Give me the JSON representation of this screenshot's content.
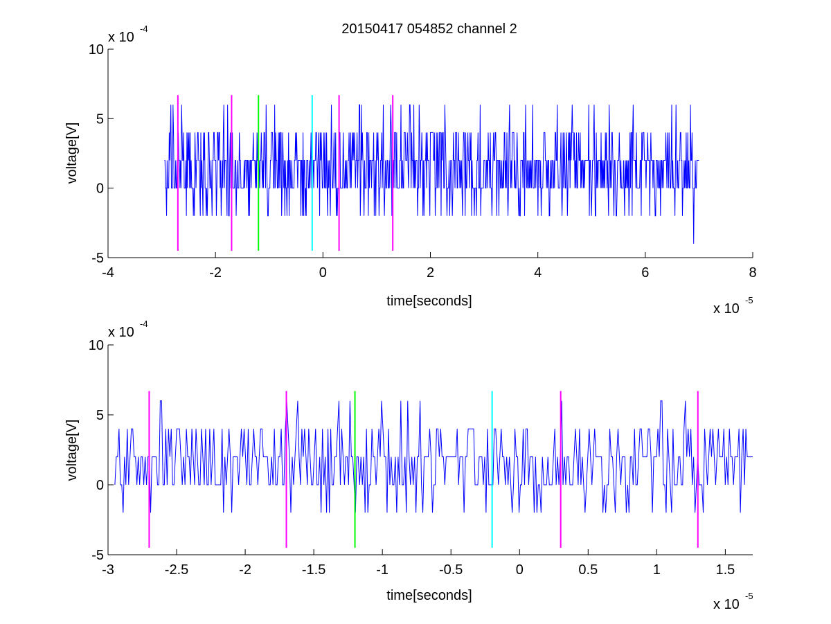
{
  "figure": {
    "title": "20150417 054852 channel 2"
  },
  "chart_data": [
    {
      "type": "line",
      "panel": "top",
      "xlabel": "time[seconds]",
      "ylabel": "voltage[V]",
      "xlim": [
        -4,
        8
      ],
      "ylim": [
        -5,
        10
      ],
      "x_ticks": [
        -4,
        -2,
        0,
        2,
        4,
        6,
        8
      ],
      "x_tick_labels": [
        "-4",
        "-2",
        "0",
        "2",
        "4",
        "6",
        "8"
      ],
      "y_ticks": [
        -5,
        0,
        5,
        10
      ],
      "y_tick_labels": [
        "-5",
        "0",
        "5",
        "10"
      ],
      "x_multiplier": {
        "base": "x 10",
        "exponent": "-5"
      },
      "y_multiplier": {
        "base": "x 10",
        "exponent": "-4"
      },
      "signal": {
        "color": "#0000ff",
        "x_start": -2.95,
        "x_end": 7.0,
        "samples": 1000,
        "levels": [
          -4,
          -2,
          0,
          2,
          4,
          6
        ],
        "baseline": 2,
        "min": -4,
        "max": 6,
        "note_points": [
          {
            "x": 4.95,
            "y": 6
          },
          {
            "x": 6.9,
            "y": -4
          }
        ]
      },
      "markers": [
        {
          "x": -2.7,
          "color": "#ff00ff",
          "y_range": [
            -4.5,
            6.7
          ]
        },
        {
          "x": -1.7,
          "color": "#ff00ff",
          "y_range": [
            -4.5,
            6.7
          ]
        },
        {
          "x": -1.2,
          "color": "#00ff00",
          "y_range": [
            -4.5,
            6.7
          ]
        },
        {
          "x": -0.2,
          "color": "#00ffff",
          "y_range": [
            -4.5,
            6.7
          ]
        },
        {
          "x": 0.3,
          "color": "#ff00ff",
          "y_range": [
            -4.5,
            6.7
          ]
        },
        {
          "x": 1.3,
          "color": "#ff00ff",
          "y_range": [
            -4.5,
            6.7
          ]
        }
      ]
    },
    {
      "type": "line",
      "panel": "bottom",
      "xlabel": "time[seconds]",
      "ylabel": "voltage[V]",
      "xlim": [
        -3.0,
        1.7
      ],
      "ylim": [
        -5,
        10
      ],
      "x_ticks": [
        -3,
        -2.5,
        -2,
        -1.5,
        -1,
        -0.5,
        0,
        0.5,
        1,
        1.5
      ],
      "x_tick_labels": [
        "-3",
        "-2.5",
        "-2",
        "-1.5",
        "-1",
        "-0.5",
        "0",
        "0.5",
        "1",
        "1.5"
      ],
      "y_ticks": [
        -5,
        0,
        5,
        10
      ],
      "y_tick_labels": [
        "-5",
        "0",
        "5",
        "10"
      ],
      "x_multiplier": {
        "base": "x 10",
        "exponent": "-5"
      },
      "y_multiplier": {
        "base": "x 10",
        "exponent": "-4"
      },
      "signal": {
        "color": "#0000ff",
        "x_start": -2.95,
        "x_end": 1.7,
        "samples": 465,
        "levels": [
          -2,
          0,
          2,
          4,
          6
        ],
        "baseline": 2,
        "min": -2,
        "max": 6
      },
      "markers": [
        {
          "x": -2.7,
          "color": "#ff00ff",
          "y_range": [
            -4.5,
            6.7
          ]
        },
        {
          "x": -1.7,
          "color": "#ff00ff",
          "y_range": [
            -4.5,
            6.7
          ]
        },
        {
          "x": -1.2,
          "color": "#00ff00",
          "y_range": [
            -4.5,
            6.7
          ]
        },
        {
          "x": -0.2,
          "color": "#00ffff",
          "y_range": [
            -4.5,
            6.7
          ]
        },
        {
          "x": 0.3,
          "color": "#ff00ff",
          "y_range": [
            -4.5,
            6.7
          ]
        },
        {
          "x": 1.3,
          "color": "#ff00ff",
          "y_range": [
            -4.5,
            6.7
          ]
        }
      ]
    }
  ]
}
